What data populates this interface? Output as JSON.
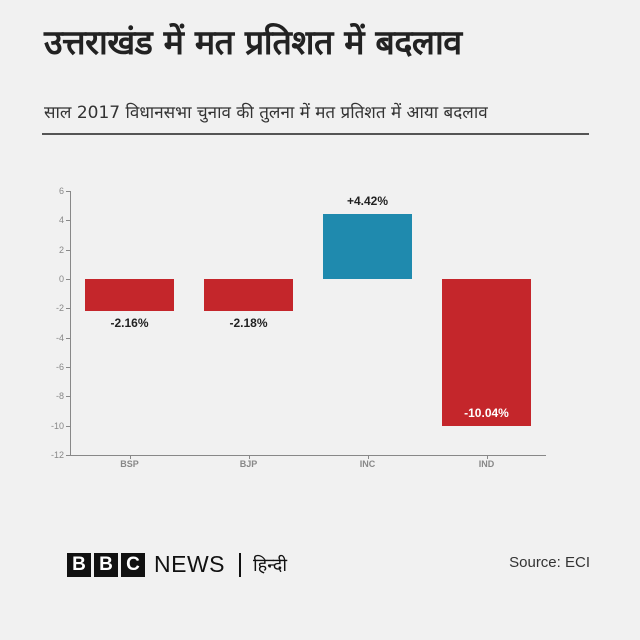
{
  "header": {
    "title": "उत्तराखंड में मत प्रतिशत में बदलाव",
    "subtitle": "साल 2017 विधानसभा चुनाव की तुलना में मत प्रतिशत में आया बदलाव"
  },
  "colors": {
    "negative": "#c4262b",
    "positive": "#1f8aae",
    "background": "#f1f1f1",
    "axis": "#888888"
  },
  "chart_data": {
    "type": "bar",
    "title": "उत्तराखंड में मत प्रतिशत में बदलाव",
    "subtitle": "साल 2017 विधानसभा चुनाव की तुलना में मत प्रतिशत में आया बदलाव",
    "categories": [
      "BSP",
      "BJP",
      "INC",
      "IND"
    ],
    "values": [
      -2.16,
      -2.18,
      4.42,
      -10.04
    ],
    "data_labels": [
      "-2.16%",
      "-2.18%",
      "+4.42%",
      "-10.04%"
    ],
    "bar_colors": [
      "#c4262b",
      "#c4262b",
      "#1f8aae",
      "#c4262b"
    ],
    "xlabel": "",
    "ylabel": "",
    "ylim": [
      -12,
      6
    ],
    "yticks": [
      6,
      4,
      2,
      0,
      -2,
      -4,
      -6,
      -8,
      -10,
      -12
    ],
    "grid": false,
    "legend": null
  },
  "footer": {
    "brand_letters": [
      "B",
      "B",
      "C"
    ],
    "brand_news": "NEWS",
    "brand_language": "हिन्दी",
    "source": "Source: ECI"
  }
}
